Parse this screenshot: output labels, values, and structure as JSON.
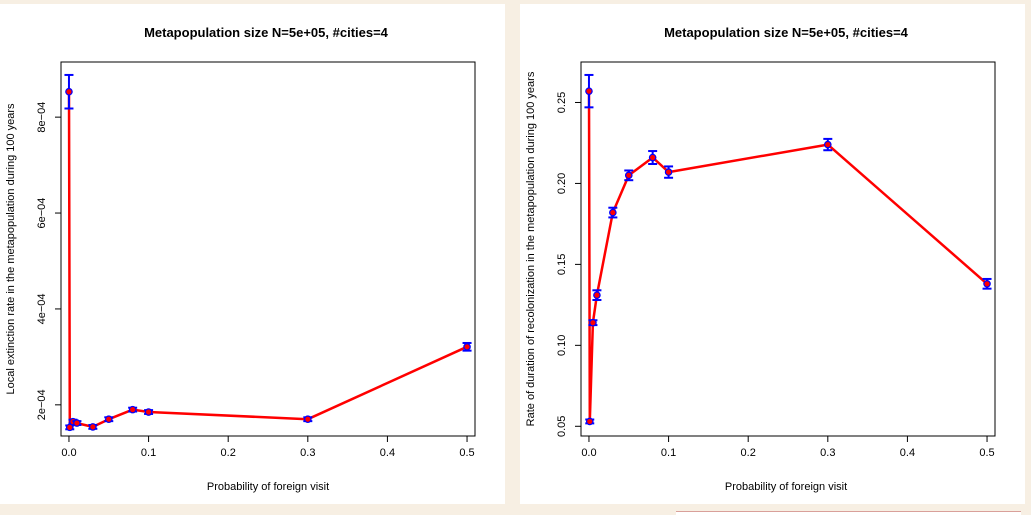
{
  "chart_data": [
    {
      "type": "line",
      "title": "Metapopulation size N=5e+05, #cities=4",
      "xlabel": "Probability of foreign visit",
      "ylabel": "Local extinction rate in the metapopulation during 100 years",
      "xlim": [
        -0.01,
        0.51
      ],
      "ylim": [
        0.000135,
        0.000915
      ],
      "xticks": [
        0.0,
        0.1,
        0.2,
        0.3,
        0.4,
        0.5
      ],
      "xtick_labels": [
        "0.0",
        "0.1",
        "0.2",
        "0.3",
        "0.4",
        "0.5"
      ],
      "yticks": [
        0.0002,
        0.0004,
        0.0006,
        0.0008
      ],
      "ytick_labels": [
        "2e−04",
        "4e−04",
        "6e−04",
        "8e−04"
      ],
      "grid": false,
      "line_color": "#ff0000",
      "errorbar_color": "#0000ff",
      "point_color": "#ff0000",
      "x": [
        0.0,
        0.001,
        0.005,
        0.01,
        0.03,
        0.05,
        0.08,
        0.1,
        0.3,
        0.5
      ],
      "y": [
        0.000853,
        0.000153,
        0.000165,
        0.000162,
        0.000154,
        0.00017,
        0.00019,
        0.000185,
        0.00017,
        0.000321
      ],
      "err": [
        3.5e-05,
        4e-06,
        4e-06,
        4e-06,
        4e-06,
        4e-06,
        4e-06,
        4e-06,
        4e-06,
        8e-06
      ]
    },
    {
      "type": "line",
      "title": "Metapopulation size N=5e+05, #cities=4",
      "xlabel": "Probability of foreign visit",
      "ylabel": "Rate of duration of recolonization in the metapopulation during 100 years",
      "xlim": [
        -0.01,
        0.51
      ],
      "ylim": [
        0.044,
        0.275
      ],
      "xticks": [
        0.0,
        0.1,
        0.2,
        0.3,
        0.4,
        0.5
      ],
      "xtick_labels": [
        "0.0",
        "0.1",
        "0.2",
        "0.3",
        "0.4",
        "0.5"
      ],
      "yticks": [
        0.05,
        0.1,
        0.15,
        0.2,
        0.25
      ],
      "ytick_labels": [
        "0.05",
        "0.10",
        "0.15",
        "0.20",
        "0.25"
      ],
      "grid": false,
      "line_color": "#ff0000",
      "errorbar_color": "#0000ff",
      "point_color": "#ff0000",
      "x": [
        0.0,
        0.001,
        0.005,
        0.01,
        0.03,
        0.05,
        0.08,
        0.1,
        0.3,
        0.5
      ],
      "y": [
        0.257,
        0.053,
        0.114,
        0.131,
        0.182,
        0.205,
        0.216,
        0.207,
        0.224,
        0.138
      ],
      "err": [
        0.01,
        0.0012,
        0.0015,
        0.003,
        0.003,
        0.003,
        0.004,
        0.0035,
        0.0035,
        0.003
      ]
    }
  ]
}
